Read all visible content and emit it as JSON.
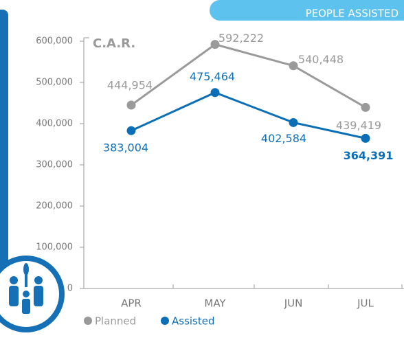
{
  "chart_data": {
    "type": "line",
    "title": "PEOPLE ASSISTED",
    "subtitle": "C.A.R.",
    "categories": [
      "APR",
      "MAY",
      "JUN",
      "JUL"
    ],
    "series": [
      {
        "name": "Planned",
        "color": "#9a9a9a",
        "values": [
          444954,
          592222,
          540448,
          439419
        ],
        "value_labels": [
          "444,954",
          "592,222",
          "540,448",
          "439,419"
        ]
      },
      {
        "name": "Assisted",
        "color": "#0b6fb7",
        "values": [
          383004,
          475464,
          402584,
          364391
        ],
        "value_labels": [
          "383,004",
          "475,464",
          "402,584",
          "364,391"
        ]
      }
    ],
    "ylim": [
      0,
      600000
    ],
    "yticks": [
      0,
      {
        "value": 100000,
        "label": "100,000"
      },
      {
        "value": 200000,
        "label": "200,000"
      },
      {
        "value": 300000,
        "label": "300,000"
      },
      {
        "value": 400000,
        "label": "400,000"
      },
      {
        "value": 500000,
        "label": "500,000"
      },
      {
        "value": 600000,
        "label": "600,000"
      }
    ],
    "legend": "bottom"
  }
}
